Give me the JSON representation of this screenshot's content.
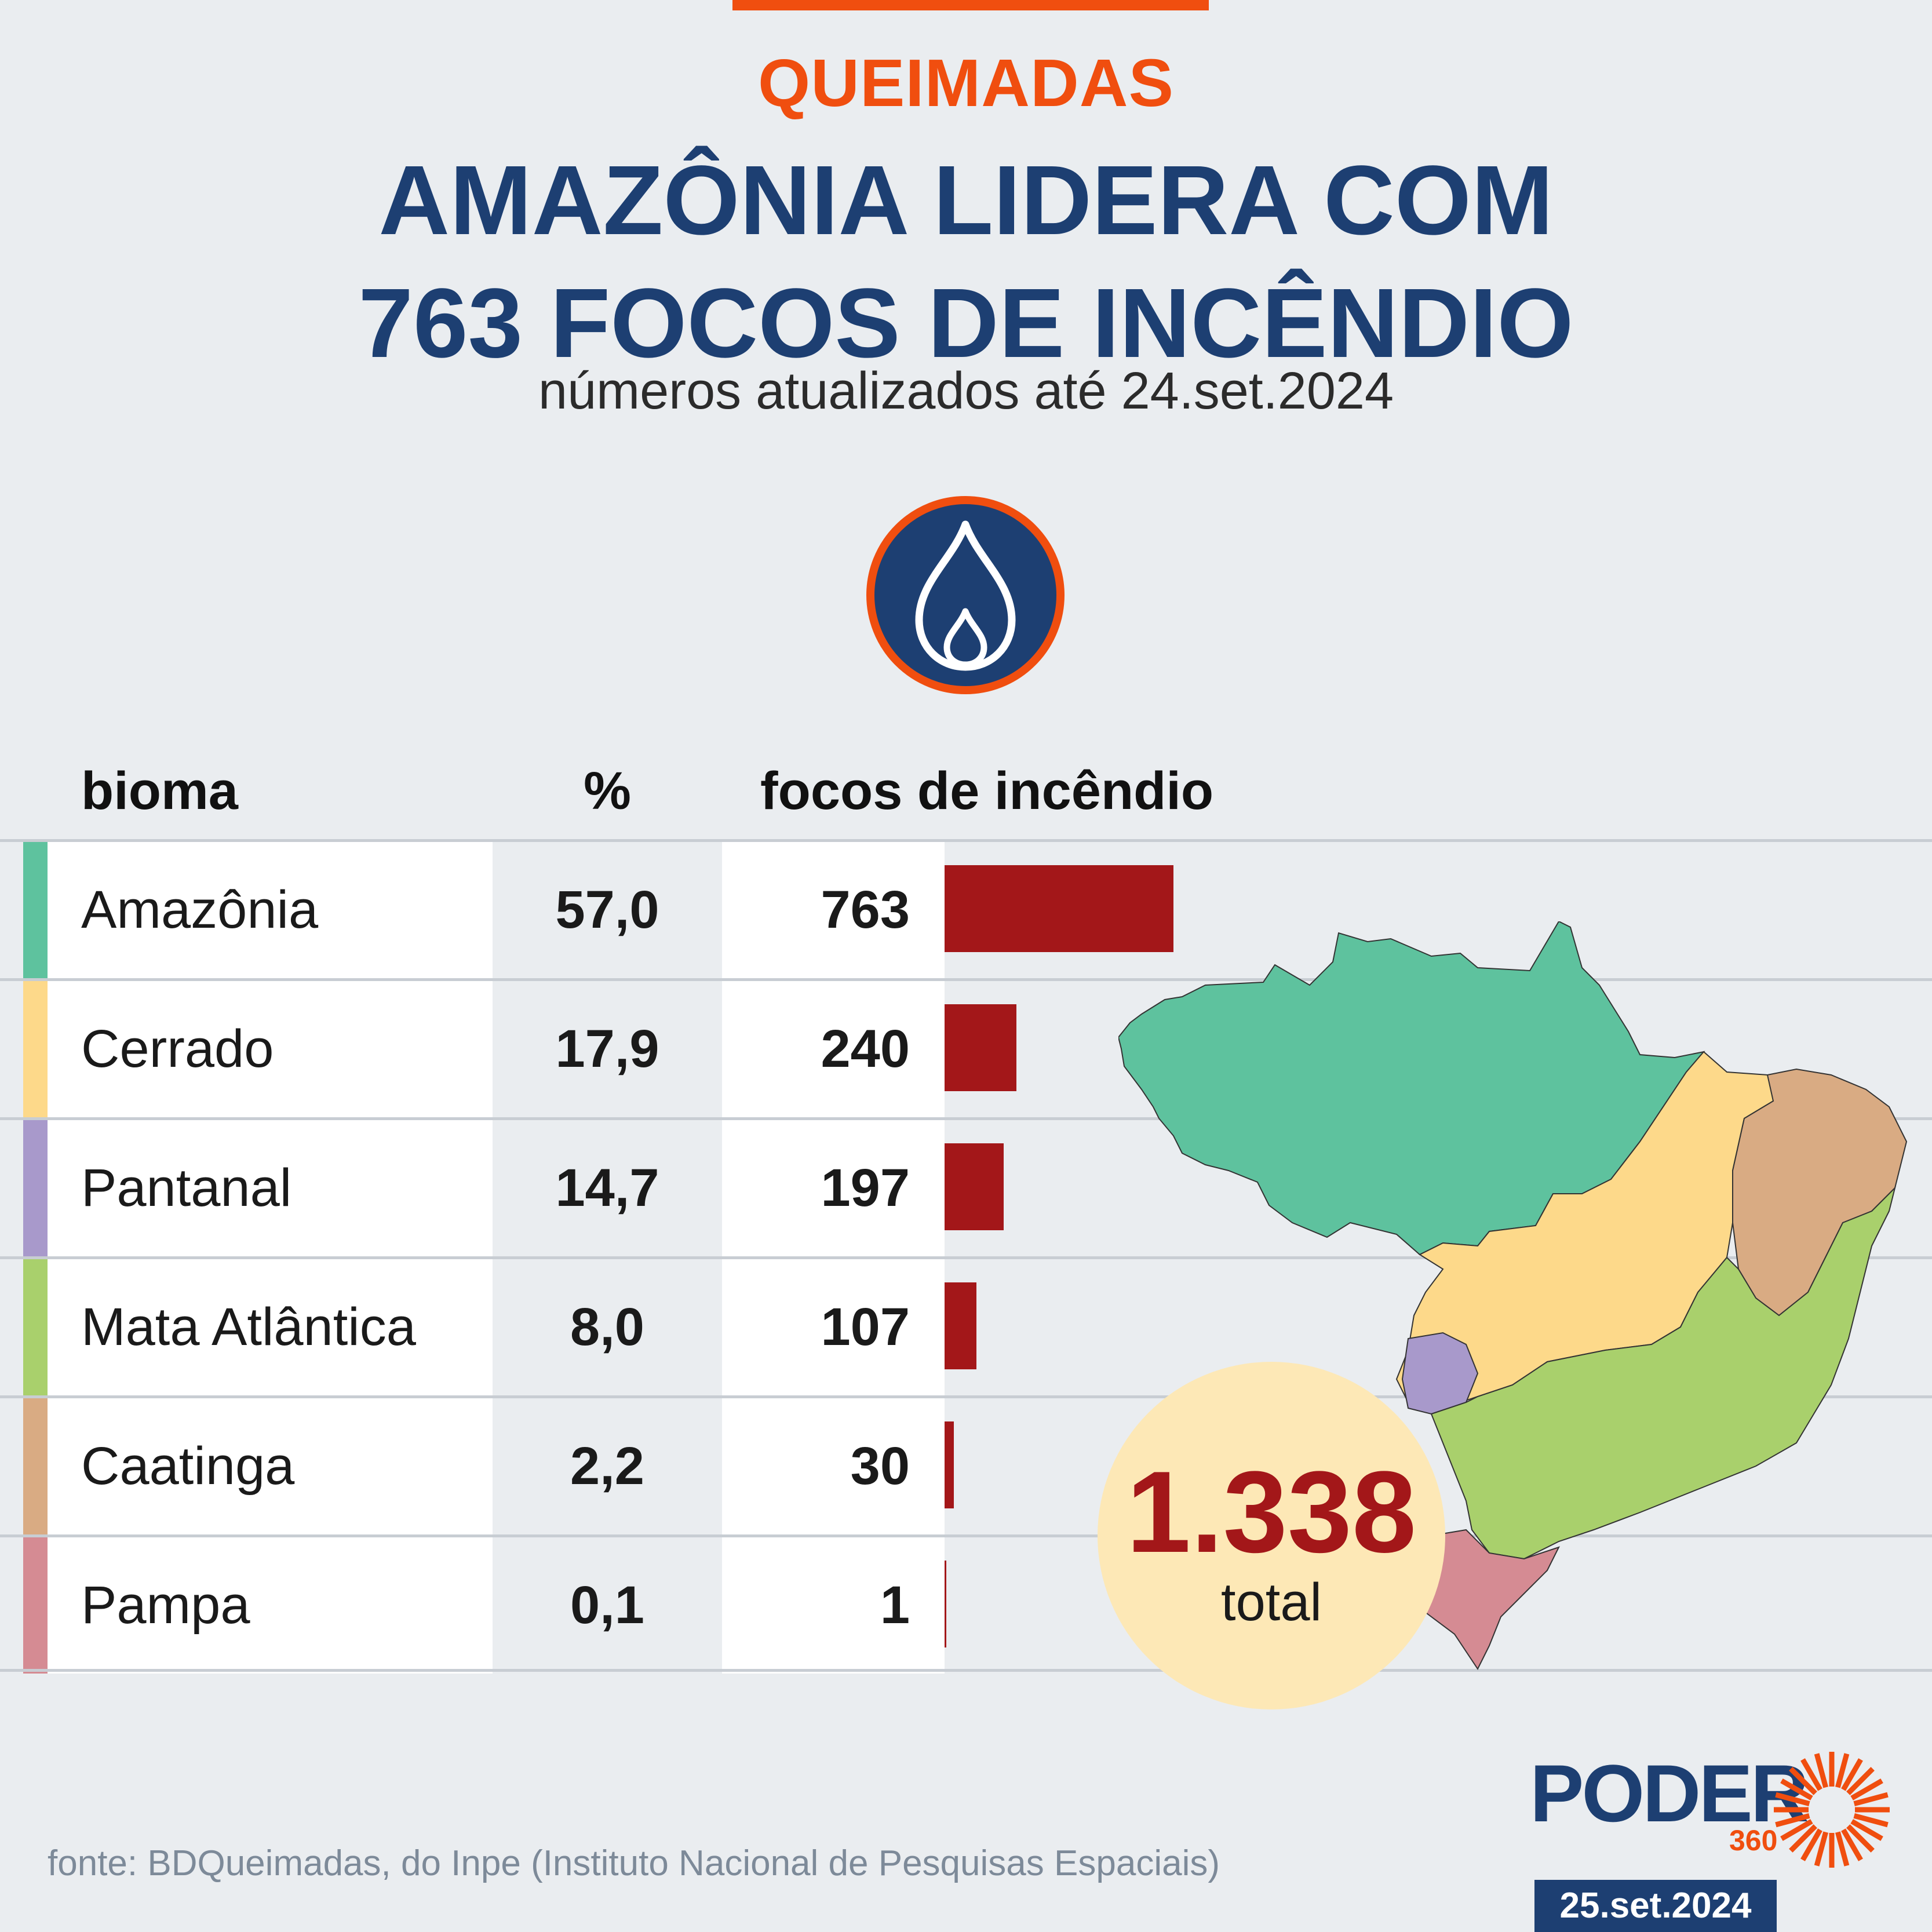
{
  "header": {
    "kicker": "QUEIMADAS",
    "headline_line1": "AMAZÔNIA LIDERA COM",
    "headline_line2": "763 FOCOS DE INCÊNDIO",
    "subtitle": "números atualizados até 24.set.2024"
  },
  "table": {
    "col_bioma": "bioma",
    "col_pct": "%",
    "col_focos": "focos de incêndio"
  },
  "chart_data": {
    "type": "bar",
    "orientation": "horizontal",
    "categories": [
      "Amazônia",
      "Cerrado",
      "Pantanal",
      "Mata Atlântica",
      "Caatinga",
      "Pampa"
    ],
    "percent_labels": [
      "57,0",
      "17,9",
      "14,7",
      "8,0",
      "2,2",
      "0,1"
    ],
    "count_labels": [
      "763",
      "240",
      "197",
      "107",
      "30",
      "1"
    ],
    "values": [
      763,
      240,
      197,
      107,
      30,
      1
    ],
    "bar_color": "#a31719",
    "biome_colors": [
      "#5ec29e",
      "#fdd98a",
      "#a899cb",
      "#a9d06c",
      "#d9ab83",
      "#d58b93"
    ]
  },
  "total": {
    "value": "1.338",
    "label": "total"
  },
  "icon": "flame-icon",
  "footer": {
    "source": "fonte: BDQueimadas, do Inpe (Instituto Nacional de Pesquisas Espaciais)",
    "logo_word": "PODER",
    "logo_number": "360",
    "date": "25.set.2024"
  },
  "colors": {
    "accent_orange": "#f04e0f",
    "navy": "#1d3f72",
    "total_circle": "#fde8b6"
  }
}
